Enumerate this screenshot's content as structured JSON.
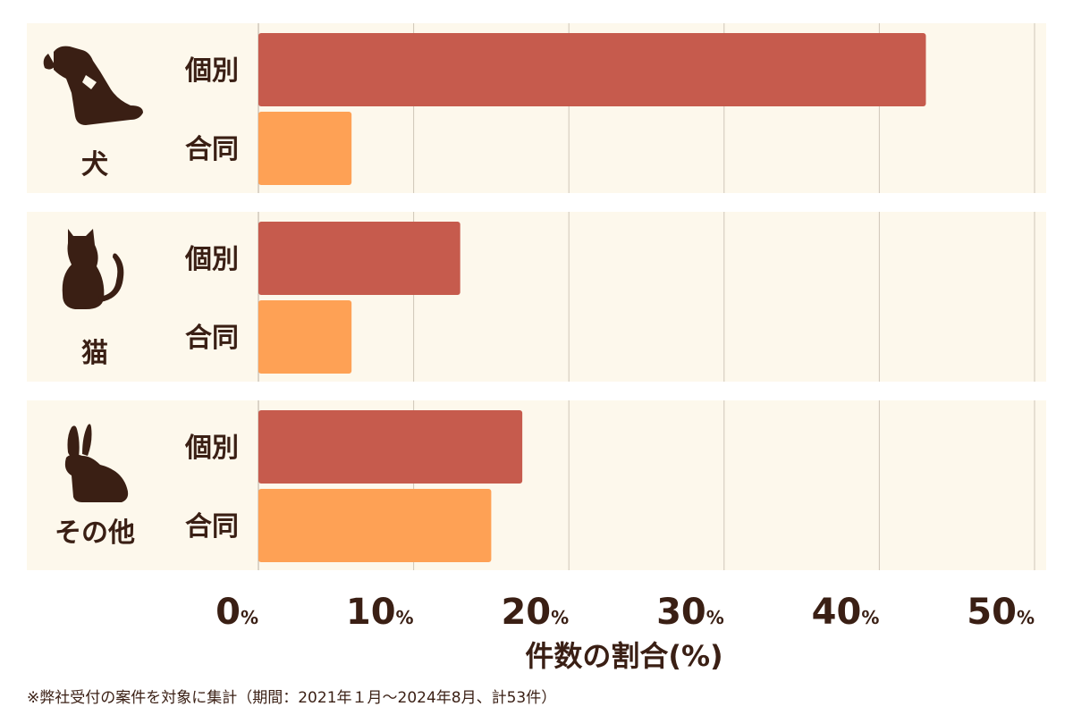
{
  "chart_data": {
    "type": "bar",
    "orientation": "horizontal",
    "xlabel": "件数の割合(%)",
    "xlim": [
      0,
      50
    ],
    "ticks": [
      0,
      10,
      20,
      30,
      40,
      50
    ],
    "tick_unit": "%",
    "grid": true,
    "groups": [
      {
        "name": "犬",
        "icon": "dog-icon",
        "bars": [
          {
            "label": "個別",
            "value": 43
          },
          {
            "label": "合同",
            "value": 6
          }
        ]
      },
      {
        "name": "猫",
        "icon": "cat-icon",
        "bars": [
          {
            "label": "個別",
            "value": 13
          },
          {
            "label": "合同",
            "value": 6
          }
        ]
      },
      {
        "name": "その他",
        "icon": "rabbit-icon",
        "bars": [
          {
            "label": "個別",
            "value": 17
          },
          {
            "label": "合同",
            "value": 15
          }
        ]
      }
    ],
    "colors": {
      "個別": "#c65b4d",
      "合同": "#fea155",
      "text": "#3a1f14",
      "band": "#fdf8ec"
    }
  },
  "footnote": "※弊社受付の案件を対象に集計（期間：2021年１月〜2024年8月、計53件）"
}
